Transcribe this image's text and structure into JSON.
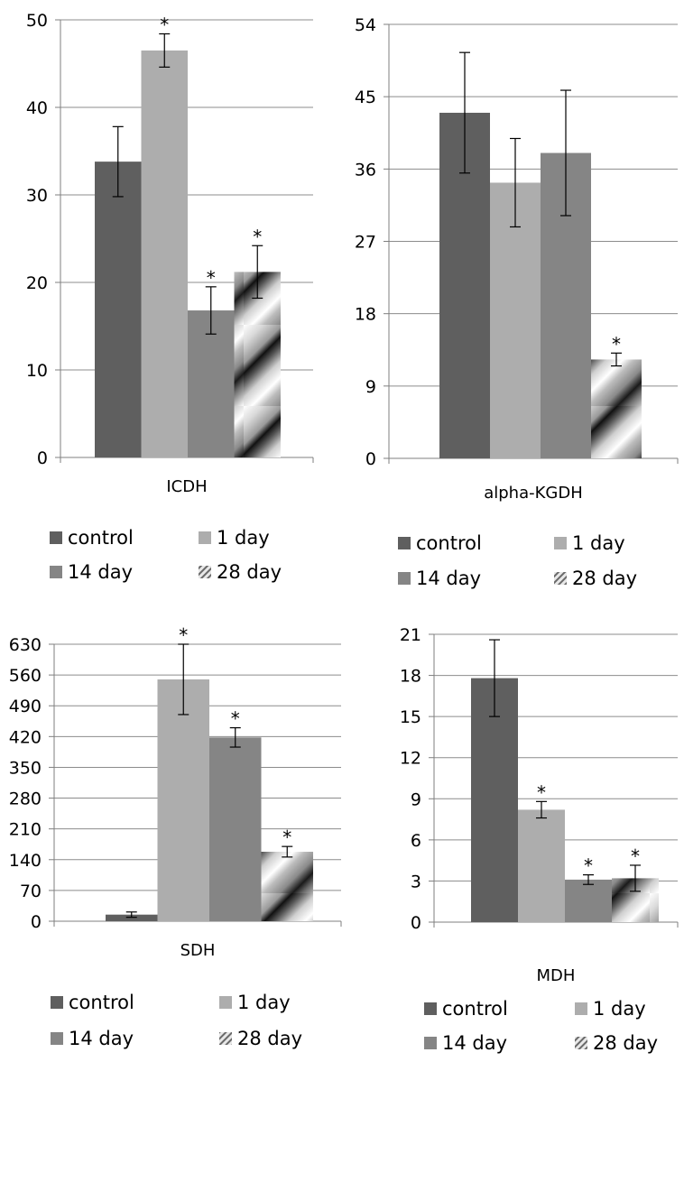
{
  "chart_data": [
    {
      "type": "bar",
      "xlabel": "ICDH",
      "categories": [
        "ICDH"
      ],
      "series": [
        {
          "name": "control",
          "values": [
            33.8
          ],
          "error": [
            4.0
          ],
          "significant": [
            false
          ]
        },
        {
          "name": "1 day",
          "values": [
            46.5
          ],
          "error": [
            1.9
          ],
          "significant": [
            true
          ]
        },
        {
          "name": "14 day",
          "values": [
            16.8
          ],
          "error": [
            2.7
          ],
          "significant": [
            true
          ]
        },
        {
          "name": "28 day",
          "values": [
            21.2
          ],
          "error": [
            3.0
          ],
          "significant": [
            true
          ]
        }
      ],
      "ylim": [
        0,
        50
      ],
      "yticks": [
        0,
        10,
        20,
        30,
        40,
        50
      ],
      "grid": true,
      "legend_position": "bottom"
    },
    {
      "type": "bar",
      "xlabel": "alpha-KGDH",
      "categories": [
        "alpha-KGDH"
      ],
      "series": [
        {
          "name": "control",
          "values": [
            43.0
          ],
          "error": [
            7.5
          ],
          "significant": [
            false
          ]
        },
        {
          "name": "1 day",
          "values": [
            34.3
          ],
          "error": [
            5.5
          ],
          "significant": [
            false
          ]
        },
        {
          "name": "14 day",
          "values": [
            38.0
          ],
          "error": [
            7.8
          ],
          "significant": [
            false
          ]
        },
        {
          "name": "28 day",
          "values": [
            12.3
          ],
          "error": [
            0.8
          ],
          "significant": [
            true
          ]
        }
      ],
      "ylim": [
        0,
        54
      ],
      "yticks": [
        0,
        9,
        18,
        27,
        36,
        45,
        54
      ],
      "grid": true,
      "legend_position": "bottom"
    },
    {
      "type": "bar",
      "xlabel": "SDH",
      "categories": [
        "SDH"
      ],
      "series": [
        {
          "name": "control",
          "values": [
            15
          ],
          "error": [
            6
          ],
          "significant": [
            false
          ]
        },
        {
          "name": "1 day",
          "values": [
            550
          ],
          "error": [
            80
          ],
          "significant": [
            true
          ]
        },
        {
          "name": "14 day",
          "values": [
            418
          ],
          "error": [
            22
          ],
          "significant": [
            true
          ]
        },
        {
          "name": "28 day",
          "values": [
            158
          ],
          "error": [
            12
          ],
          "significant": [
            true
          ]
        }
      ],
      "ylim": [
        0,
        630
      ],
      "yticks": [
        0,
        70,
        140,
        210,
        280,
        350,
        420,
        490,
        560,
        630
      ],
      "grid": true,
      "legend_position": "bottom"
    },
    {
      "type": "bar",
      "xlabel": "MDH",
      "categories": [
        "MDH"
      ],
      "series": [
        {
          "name": "control",
          "values": [
            17.8
          ],
          "error": [
            2.8
          ],
          "significant": [
            false
          ]
        },
        {
          "name": "1 day",
          "values": [
            8.2
          ],
          "error": [
            0.6
          ],
          "significant": [
            true
          ]
        },
        {
          "name": "14 day",
          "values": [
            3.1
          ],
          "error": [
            0.35
          ],
          "significant": [
            true
          ]
        },
        {
          "name": "28 day",
          "values": [
            3.2
          ],
          "error": [
            0.95
          ],
          "significant": [
            true
          ]
        }
      ],
      "ylim": [
        0,
        21
      ],
      "yticks": [
        0,
        3,
        6,
        9,
        12,
        15,
        18,
        21
      ],
      "grid": true,
      "legend_position": "bottom"
    }
  ],
  "significance_marker": "*",
  "colors": {
    "control": "#5f5f5f",
    "1 day": "#adadad",
    "14 day": "#858585",
    "28 day": "#d0d0d0",
    "gridline": "#8c8c8c",
    "axis": "#7f7f7f"
  }
}
